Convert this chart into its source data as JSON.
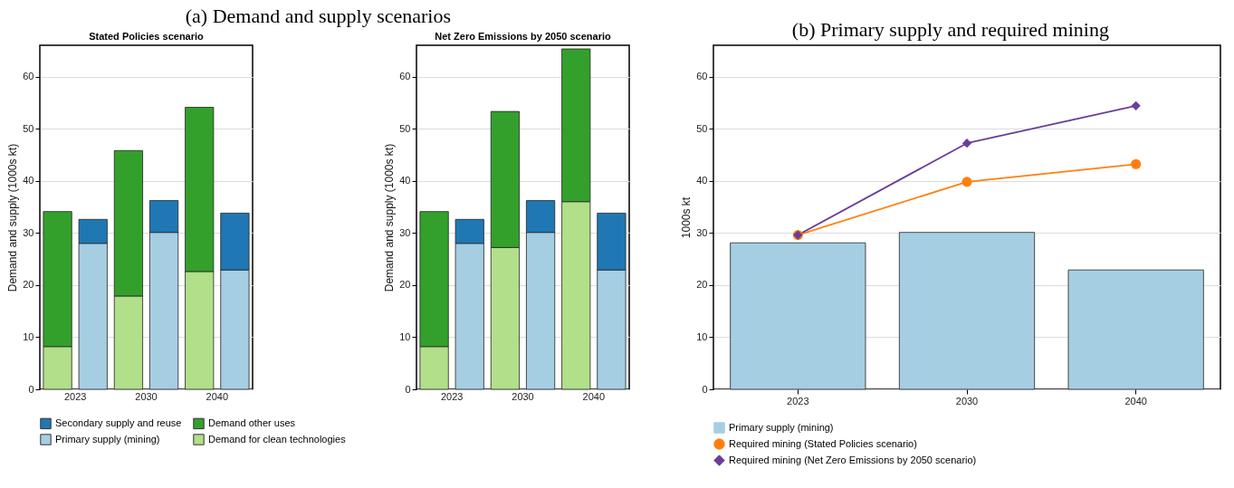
{
  "chart_data": [
    {
      "type": "bar",
      "title": "(a) Demand and supply scenarios",
      "subtitle": "Stated Policies scenario",
      "ylabel": "Demand and supply (1000s kt)",
      "categories": [
        "2023",
        null,
        "2030",
        null,
        "2040",
        null
      ],
      "stacked": true,
      "ylim": [
        0,
        66
      ],
      "yticks": [
        0,
        10,
        20,
        30,
        40,
        50,
        60
      ],
      "grid": "y",
      "legend": "bottom",
      "series": [
        {
          "name": "Demand for clean technologies",
          "color": "#b2df8a",
          "values": [
            8.2,
            null,
            17.9,
            null,
            22.6,
            null
          ]
        },
        {
          "name": "Demand other uses",
          "color": "#33a02c",
          "values": [
            25.9,
            null,
            27.9,
            null,
            31.5,
            null
          ]
        },
        {
          "name": "Primary supply (mining)",
          "color": "#a6cee3",
          "values": [
            null,
            28.0,
            null,
            30.1,
            null,
            22.9
          ]
        },
        {
          "name": "Secondary supply and reuse",
          "color": "#1f78b4",
          "values": [
            null,
            4.6,
            null,
            6.1,
            null,
            10.9
          ]
        }
      ]
    },
    {
      "type": "bar",
      "subtitle": "Net Zero Emissions by 2050 scenario",
      "ylabel": "Demand and supply (1000s kt)",
      "categories": [
        "2023",
        null,
        "2030",
        null,
        "2040",
        null
      ],
      "stacked": true,
      "ylim": [
        0,
        66
      ],
      "yticks": [
        0,
        10,
        20,
        30,
        40,
        50,
        60
      ],
      "grid": "y",
      "series": [
        {
          "color": "#b2df8a",
          "values": [
            8.2,
            null,
            27.2,
            null,
            36.0,
            null
          ]
        },
        {
          "color": "#33a02c",
          "values": [
            25.9,
            null,
            26.1,
            null,
            29.3,
            null
          ]
        },
        {
          "color": "#a6cee3",
          "values": [
            null,
            28.0,
            null,
            30.1,
            null,
            22.9
          ]
        },
        {
          "color": "#1f78b4",
          "values": [
            null,
            4.6,
            null,
            6.1,
            null,
            10.9
          ]
        }
      ]
    },
    {
      "type": "bar",
      "title": "(b) Primary supply and required mining",
      "ylabel": "1000s kt",
      "categories": [
        "2023",
        "2030",
        "2040"
      ],
      "ylim": [
        0,
        66
      ],
      "yticks": [
        0,
        10,
        20,
        30,
        40,
        50,
        60
      ],
      "grid": "y",
      "legend": "bottom",
      "series": [
        {
          "name": "Primary supply (mining)",
          "color": "#a6cee3",
          "values": [
            28.1,
            30.1,
            22.9
          ]
        },
        {
          "name": "Required mining (Stated Policies scenario)",
          "color": "#ff7f0e",
          "type": "line",
          "marker": "circle",
          "values": [
            29.6,
            39.8,
            43.2
          ]
        },
        {
          "name": "Required mining (Net Zero Emissions by 2050 scenario)",
          "color": "#6a3d9a",
          "type": "line",
          "marker": "diamond",
          "values": [
            29.6,
            47.2,
            54.4
          ]
        }
      ]
    }
  ]
}
